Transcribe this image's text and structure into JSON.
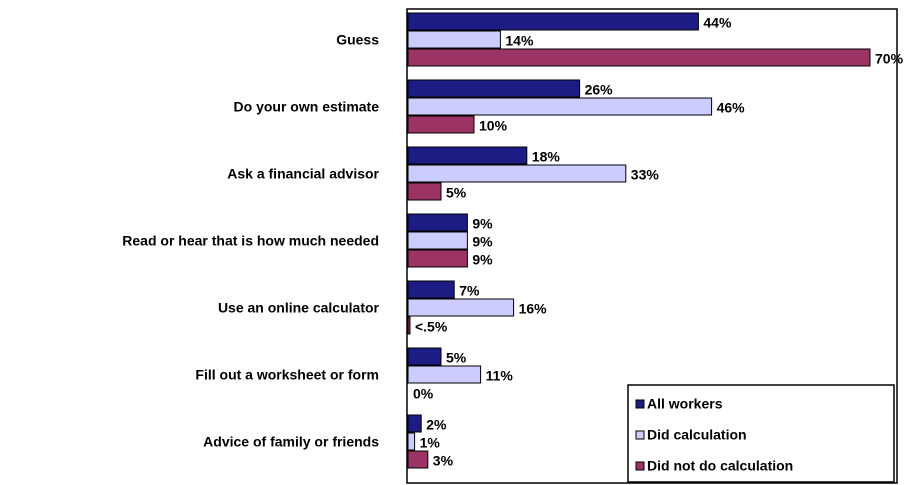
{
  "chart_data": {
    "type": "bar",
    "orientation": "horizontal",
    "categories": [
      "Guess",
      "Do your own estimate",
      "Ask a financial advisor",
      "Read or hear that is how much needed",
      "Use an online calculator",
      "Fill out a worksheet or form",
      "Advice of family or friends"
    ],
    "series": [
      {
        "name": "All workers",
        "color": "#1c1c84",
        "values": [
          44,
          26,
          18,
          9,
          7,
          5,
          2
        ],
        "value_labels": [
          "44%",
          "26%",
          "18%",
          "9%",
          "7%",
          "5%",
          "2%"
        ]
      },
      {
        "name": "Did calculation",
        "color": "#ccccff",
        "values": [
          14,
          46,
          33,
          9,
          16,
          11,
          1
        ],
        "value_labels": [
          "14%",
          "46%",
          "33%",
          "9%",
          "16%",
          "11%",
          "1%"
        ]
      },
      {
        "name": "Did not do calculation",
        "color": "#9b3464",
        "values": [
          70,
          10,
          5,
          9,
          0.3,
          0,
          3
        ],
        "value_labels": [
          "70%",
          "10%",
          "5%",
          "9%",
          "<.5%",
          "0%",
          "3%"
        ]
      }
    ],
    "legend": "lower-right"
  }
}
